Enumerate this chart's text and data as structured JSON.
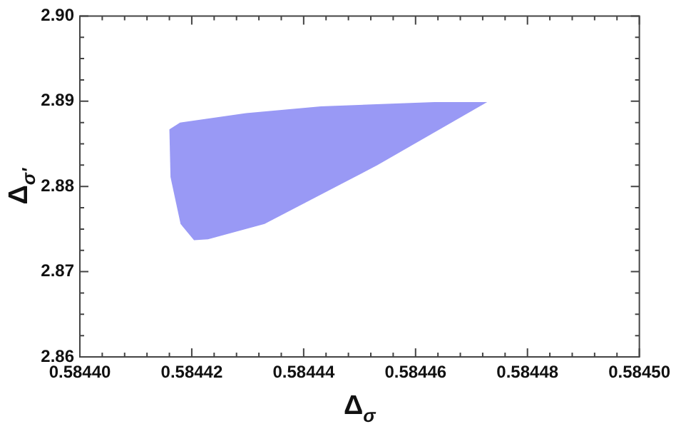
{
  "chart_data": {
    "type": "area",
    "xlabel": "Δ$_{σ}$",
    "ylabel": "Δ$_{σ'}$",
    "series": [
      {
        "color": "#9999f5",
        "x": [
          0.584416,
          0.5844179,
          0.5844297,
          0.5844431,
          0.5844634,
          0.5844728,
          0.5844532,
          0.584433,
          0.5844229,
          0.5844204,
          0.584418,
          0.5844162,
          0.584416
        ],
        "values": [
          2.8867,
          2.8875,
          2.8886,
          2.8894,
          2.8899,
          2.8899,
          2.8825,
          2.8756,
          2.8738,
          2.8737,
          2.8756,
          2.8811,
          2.8867
        ]
      }
    ],
    "xlim": [
      0.5844,
      0.5845
    ],
    "xticks": [
      {
        "value": 0.5844,
        "label": "0.58440"
      },
      {
        "value": 0.584404,
        "label": null
      },
      {
        "value": 0.584408,
        "label": null
      },
      {
        "value": 0.584412,
        "label": null
      },
      {
        "value": 0.584416,
        "label": null
      },
      {
        "value": 0.58442,
        "label": "0.58442"
      },
      {
        "value": 0.584424,
        "label": null
      },
      {
        "value": 0.584428,
        "label": null
      },
      {
        "value": 0.584432,
        "label": null
      },
      {
        "value": 0.584436,
        "label": null
      },
      {
        "value": 0.58444,
        "label": "0.58444"
      },
      {
        "value": 0.584444,
        "label": null
      },
      {
        "value": 0.584448,
        "label": null
      },
      {
        "value": 0.584452,
        "label": null
      },
      {
        "value": 0.584456,
        "label": null
      },
      {
        "value": 0.58446,
        "label": "0.58446"
      },
      {
        "value": 0.584464,
        "label": null
      },
      {
        "value": 0.584468,
        "label": null
      },
      {
        "value": 0.584472,
        "label": null
      },
      {
        "value": 0.584476,
        "label": null
      },
      {
        "value": 0.58448,
        "label": "0.58448"
      },
      {
        "value": 0.584484,
        "label": null
      },
      {
        "value": 0.584488,
        "label": null
      },
      {
        "value": 0.584492,
        "label": null
      },
      {
        "value": 0.584496,
        "label": null
      },
      {
        "value": 0.5845,
        "label": "0.58450"
      }
    ],
    "ylim": [
      2.86,
      2.9
    ],
    "yticks": [
      2.86,
      {
        "value": 2.8625,
        "label": null
      },
      {
        "value": 2.865,
        "label": null
      },
      {
        "value": 2.8675,
        "label": null
      },
      2.87,
      {
        "value": 2.8725,
        "label": null
      },
      {
        "value": 2.875,
        "label": null
      },
      {
        "value": 2.8775,
        "label": null
      },
      2.88,
      {
        "value": 2.8825,
        "label": null
      },
      {
        "value": 2.885,
        "label": null
      },
      {
        "value": 2.8875,
        "label": null
      },
      2.89,
      {
        "value": 2.8925,
        "label": null
      },
      {
        "value": 2.895,
        "label": null
      },
      {
        "value": 2.8975,
        "label": null
      },
      {
        "value": 2.9,
        "label": "2.90"
      }
    ],
    "grid": false,
    "legend": false
  }
}
